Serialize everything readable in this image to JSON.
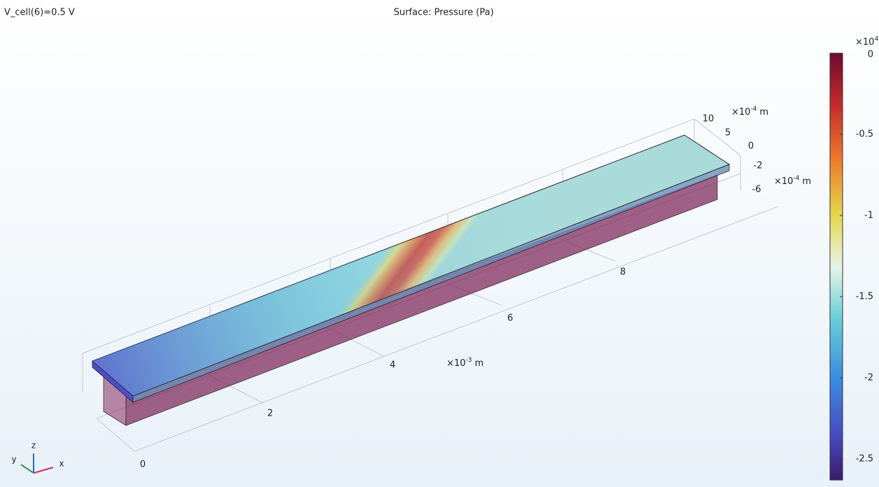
{
  "header": {
    "left": "V_cell(6)=0.5 V",
    "title": "Surface: Pressure (Pa)"
  },
  "colorbar": {
    "multiplier": "×10",
    "exponent": "4",
    "ticks": [
      "0",
      "-0.5",
      "-1",
      "-1.5",
      "-2",
      "-2.5"
    ]
  },
  "x_axis": {
    "ticks": [
      "0",
      "2",
      "4",
      "6",
      "8"
    ],
    "multiplier": "×10",
    "exponent": "-3",
    "unit": "m"
  },
  "y_axis": {
    "ticks": [
      "10",
      "5",
      "0"
    ],
    "multiplier": "×10",
    "exponent": "-4",
    "unit": "m"
  },
  "z_axis": {
    "ticks": [
      "-2",
      "-6"
    ],
    "multiplier": "×10",
    "exponent": "-4",
    "unit": "m"
  },
  "triad": {
    "x": "x",
    "y": "y",
    "z": "z"
  }
}
